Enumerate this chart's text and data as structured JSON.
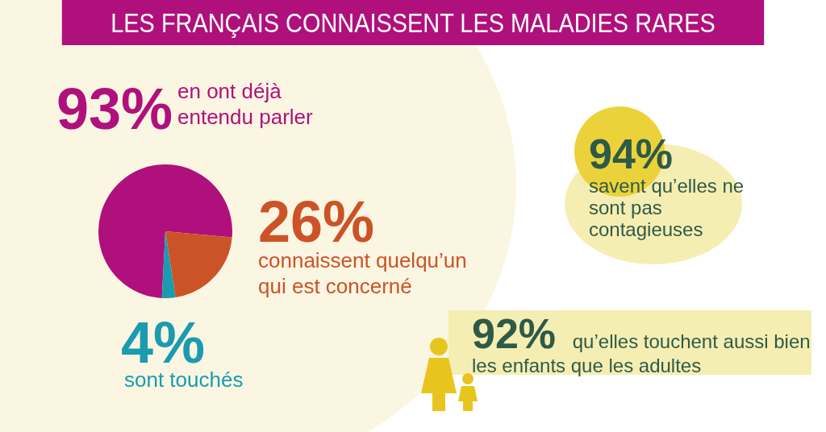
{
  "chart_data": {
    "type": "pie",
    "title": "LES FRANÇAIS CONNAISSENT LES MALADIES RARES",
    "categories": [
      "en ont déjà entendu parler",
      "connaissent quelqu’un qui est concerné",
      "sont touchés"
    ],
    "values": [
      93,
      26,
      4
    ],
    "colors": [
      "#b0107c",
      "#cc5327",
      "#1a9bb0"
    ],
    "value_labels": [
      "93%",
      "26%",
      "4%"
    ],
    "legend": false,
    "annotations": [
      "94% savent qu’elles ne sont pas contagieuses",
      "92% qu’elles touchent aussi bien les enfants que les adultes"
    ]
  }
}
